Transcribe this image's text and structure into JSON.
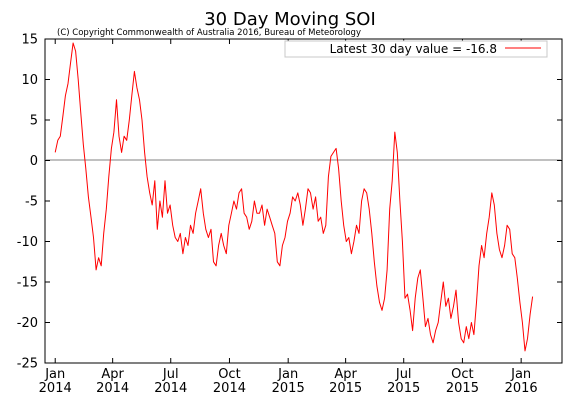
{
  "chart_data": {
    "type": "line",
    "title": "30 Day Moving SOI",
    "subtitle": "(C) Copyright Commonwealth of Australia 2016, Bureau of Meteorology",
    "xlabel": "",
    "ylabel": "",
    "ylim": [
      -25,
      15
    ],
    "yticks": [
      15,
      10,
      5,
      0,
      -5,
      -10,
      -15,
      -20,
      -25
    ],
    "xlim": [
      "2013-12-16",
      "2016-03-05"
    ],
    "xticks": [
      {
        "date": "2014-01-01",
        "month": "Jan",
        "year": "2014"
      },
      {
        "date": "2014-04-01",
        "month": "Apr",
        "year": "2014"
      },
      {
        "date": "2014-07-01",
        "month": "Jul",
        "year": "2014"
      },
      {
        "date": "2014-10-01",
        "month": "Oct",
        "year": "2014"
      },
      {
        "date": "2015-01-01",
        "month": "Jan",
        "year": "2015"
      },
      {
        "date": "2015-04-01",
        "month": "Apr",
        "year": "2015"
      },
      {
        "date": "2015-07-01",
        "month": "Jul",
        "year": "2015"
      },
      {
        "date": "2015-10-01",
        "month": "Oct",
        "year": "2015"
      },
      {
        "date": "2016-01-01",
        "month": "Jan",
        "year": "2016"
      }
    ],
    "zero_line": true,
    "grid": false,
    "legend_position": "top-right",
    "series": [
      {
        "name": "Latest 30 day value = -16.8",
        "color": "#ff0000",
        "points": [
          [
            "2014-01-01",
            1.0
          ],
          [
            "2014-01-05",
            2.5
          ],
          [
            "2014-01-09",
            3.0
          ],
          [
            "2014-01-13",
            5.5
          ],
          [
            "2014-01-17",
            8.0
          ],
          [
            "2014-01-21",
            9.5
          ],
          [
            "2014-01-25",
            12.0
          ],
          [
            "2014-01-29",
            14.5
          ],
          [
            "2014-02-02",
            13.5
          ],
          [
            "2014-02-06",
            10.0
          ],
          [
            "2014-02-10",
            6.0
          ],
          [
            "2014-02-14",
            2.0
          ],
          [
            "2014-02-18",
            -1.0
          ],
          [
            "2014-02-22",
            -4.5
          ],
          [
            "2014-02-26",
            -7.0
          ],
          [
            "2014-03-02",
            -9.5
          ],
          [
            "2014-03-06",
            -13.5
          ],
          [
            "2014-03-10",
            -12.0
          ],
          [
            "2014-03-14",
            -13.0
          ],
          [
            "2014-03-18",
            -9.0
          ],
          [
            "2014-03-22",
            -6.0
          ],
          [
            "2014-03-26",
            -2.0
          ],
          [
            "2014-03-30",
            1.5
          ],
          [
            "2014-04-03",
            3.5
          ],
          [
            "2014-04-07",
            7.5
          ],
          [
            "2014-04-11",
            3.0
          ],
          [
            "2014-04-15",
            1.0
          ],
          [
            "2014-04-19",
            3.0
          ],
          [
            "2014-04-23",
            2.5
          ],
          [
            "2014-04-27",
            5.0
          ],
          [
            "2014-05-01",
            8.0
          ],
          [
            "2014-05-05",
            11.0
          ],
          [
            "2014-05-09",
            9.0
          ],
          [
            "2014-05-13",
            7.5
          ],
          [
            "2014-05-17",
            5.0
          ],
          [
            "2014-05-21",
            1.0
          ],
          [
            "2014-05-25",
            -2.0
          ],
          [
            "2014-05-29",
            -4.0
          ],
          [
            "2014-06-02",
            -5.5
          ],
          [
            "2014-06-06",
            -2.5
          ],
          [
            "2014-06-10",
            -8.5
          ],
          [
            "2014-06-14",
            -5.0
          ],
          [
            "2014-06-18",
            -7.0
          ],
          [
            "2014-06-22",
            -2.5
          ],
          [
            "2014-06-26",
            -6.5
          ],
          [
            "2014-06-30",
            -5.5
          ],
          [
            "2014-07-04",
            -8.0
          ],
          [
            "2014-07-08",
            -9.5
          ],
          [
            "2014-07-12",
            -10.0
          ],
          [
            "2014-07-16",
            -9.0
          ],
          [
            "2014-07-20",
            -11.5
          ],
          [
            "2014-07-24",
            -9.5
          ],
          [
            "2014-07-28",
            -10.5
          ],
          [
            "2014-08-01",
            -8.0
          ],
          [
            "2014-08-05",
            -9.0
          ],
          [
            "2014-08-09",
            -6.5
          ],
          [
            "2014-08-13",
            -5.0
          ],
          [
            "2014-08-17",
            -3.5
          ],
          [
            "2014-08-21",
            -6.5
          ],
          [
            "2014-08-25",
            -8.5
          ],
          [
            "2014-08-29",
            -9.5
          ],
          [
            "2014-09-02",
            -8.5
          ],
          [
            "2014-09-06",
            -12.5
          ],
          [
            "2014-09-10",
            -13.0
          ],
          [
            "2014-09-14",
            -10.5
          ],
          [
            "2014-09-18",
            -9.0
          ],
          [
            "2014-09-22",
            -10.5
          ],
          [
            "2014-09-26",
            -11.5
          ],
          [
            "2014-09-30",
            -8.0
          ],
          [
            "2014-10-04",
            -6.5
          ],
          [
            "2014-10-08",
            -5.0
          ],
          [
            "2014-10-12",
            -6.0
          ],
          [
            "2014-10-16",
            -4.0
          ],
          [
            "2014-10-20",
            -3.5
          ],
          [
            "2014-10-24",
            -6.5
          ],
          [
            "2014-10-28",
            -7.0
          ],
          [
            "2014-11-01",
            -8.5
          ],
          [
            "2014-11-05",
            -7.5
          ],
          [
            "2014-11-09",
            -5.0
          ],
          [
            "2014-11-13",
            -6.5
          ],
          [
            "2014-11-17",
            -6.5
          ],
          [
            "2014-11-21",
            -5.5
          ],
          [
            "2014-11-25",
            -8.0
          ],
          [
            "2014-11-29",
            -6.0
          ],
          [
            "2014-12-03",
            -7.0
          ],
          [
            "2014-12-07",
            -8.0
          ],
          [
            "2014-12-11",
            -9.0
          ],
          [
            "2014-12-15",
            -12.5
          ],
          [
            "2014-12-19",
            -13.0
          ],
          [
            "2014-12-23",
            -10.5
          ],
          [
            "2014-12-27",
            -9.5
          ],
          [
            "2014-12-31",
            -7.5
          ],
          [
            "2015-01-04",
            -6.5
          ],
          [
            "2015-01-08",
            -4.5
          ],
          [
            "2015-01-12",
            -5.0
          ],
          [
            "2015-01-16",
            -4.0
          ],
          [
            "2015-01-20",
            -5.5
          ],
          [
            "2015-01-24",
            -8.0
          ],
          [
            "2015-01-28",
            -6.0
          ],
          [
            "2015-02-01",
            -3.5
          ],
          [
            "2015-02-05",
            -4.0
          ],
          [
            "2015-02-09",
            -6.0
          ],
          [
            "2015-02-13",
            -4.5
          ],
          [
            "2015-02-17",
            -7.5
          ],
          [
            "2015-02-21",
            -7.0
          ],
          [
            "2015-02-25",
            -9.0
          ],
          [
            "2015-03-01",
            -8.0
          ],
          [
            "2015-03-05",
            -2.0
          ],
          [
            "2015-03-09",
            0.5
          ],
          [
            "2015-03-13",
            1.0
          ],
          [
            "2015-03-17",
            1.5
          ],
          [
            "2015-03-21",
            -1.0
          ],
          [
            "2015-03-25",
            -5.0
          ],
          [
            "2015-03-29",
            -8.0
          ],
          [
            "2015-04-02",
            -10.0
          ],
          [
            "2015-04-06",
            -9.5
          ],
          [
            "2015-04-10",
            -11.5
          ],
          [
            "2015-04-14",
            -10.0
          ],
          [
            "2015-04-18",
            -8.0
          ],
          [
            "2015-04-22",
            -9.0
          ],
          [
            "2015-04-26",
            -5.0
          ],
          [
            "2015-04-30",
            -3.5
          ],
          [
            "2015-05-04",
            -4.0
          ],
          [
            "2015-05-08",
            -6.0
          ],
          [
            "2015-05-12",
            -9.0
          ],
          [
            "2015-05-16",
            -12.5
          ],
          [
            "2015-05-20",
            -15.5
          ],
          [
            "2015-05-24",
            -17.5
          ],
          [
            "2015-05-28",
            -18.5
          ],
          [
            "2015-06-01",
            -17.0
          ],
          [
            "2015-06-05",
            -13.5
          ],
          [
            "2015-06-09",
            -6.0
          ],
          [
            "2015-06-13",
            -2.5
          ],
          [
            "2015-06-17",
            3.5
          ],
          [
            "2015-06-21",
            1.0
          ],
          [
            "2015-06-25",
            -5.0
          ],
          [
            "2015-06-29",
            -10.0
          ],
          [
            "2015-07-03",
            -17.0
          ],
          [
            "2015-07-07",
            -16.5
          ],
          [
            "2015-07-11",
            -18.5
          ],
          [
            "2015-07-15",
            -21.0
          ],
          [
            "2015-07-19",
            -17.0
          ],
          [
            "2015-07-23",
            -14.5
          ],
          [
            "2015-07-27",
            -13.5
          ],
          [
            "2015-07-31",
            -17.0
          ],
          [
            "2015-08-04",
            -20.5
          ],
          [
            "2015-08-08",
            -19.5
          ],
          [
            "2015-08-12",
            -21.5
          ],
          [
            "2015-08-16",
            -22.5
          ],
          [
            "2015-08-20",
            -21.0
          ],
          [
            "2015-08-24",
            -20.0
          ],
          [
            "2015-08-28",
            -17.5
          ],
          [
            "2015-09-01",
            -15.0
          ],
          [
            "2015-09-05",
            -18.0
          ],
          [
            "2015-09-09",
            -17.0
          ],
          [
            "2015-09-13",
            -19.5
          ],
          [
            "2015-09-17",
            -18.0
          ],
          [
            "2015-09-21",
            -16.0
          ],
          [
            "2015-09-25",
            -20.0
          ],
          [
            "2015-09-29",
            -22.0
          ],
          [
            "2015-10-03",
            -22.5
          ],
          [
            "2015-10-07",
            -20.5
          ],
          [
            "2015-10-11",
            -22.0
          ],
          [
            "2015-10-15",
            -20.0
          ],
          [
            "2015-10-19",
            -21.5
          ],
          [
            "2015-10-23",
            -17.5
          ],
          [
            "2015-10-27",
            -13.0
          ],
          [
            "2015-10-31",
            -10.5
          ],
          [
            "2015-11-04",
            -12.0
          ],
          [
            "2015-11-08",
            -9.0
          ],
          [
            "2015-11-12",
            -7.0
          ],
          [
            "2015-11-16",
            -4.0
          ],
          [
            "2015-11-20",
            -5.5
          ],
          [
            "2015-11-24",
            -9.0
          ],
          [
            "2015-11-28",
            -11.0
          ],
          [
            "2015-12-02",
            -12.0
          ],
          [
            "2015-12-06",
            -10.5
          ],
          [
            "2015-12-10",
            -8.0
          ],
          [
            "2015-12-14",
            -8.5
          ],
          [
            "2015-12-18",
            -11.5
          ],
          [
            "2015-12-22",
            -12.0
          ],
          [
            "2015-12-26",
            -14.5
          ],
          [
            "2015-12-30",
            -17.5
          ],
          [
            "2016-01-03",
            -20.0
          ],
          [
            "2016-01-07",
            -23.5
          ],
          [
            "2016-01-11",
            -22.0
          ],
          [
            "2016-01-15",
            -19.0
          ],
          [
            "2016-01-19",
            -16.8
          ]
        ]
      }
    ]
  }
}
